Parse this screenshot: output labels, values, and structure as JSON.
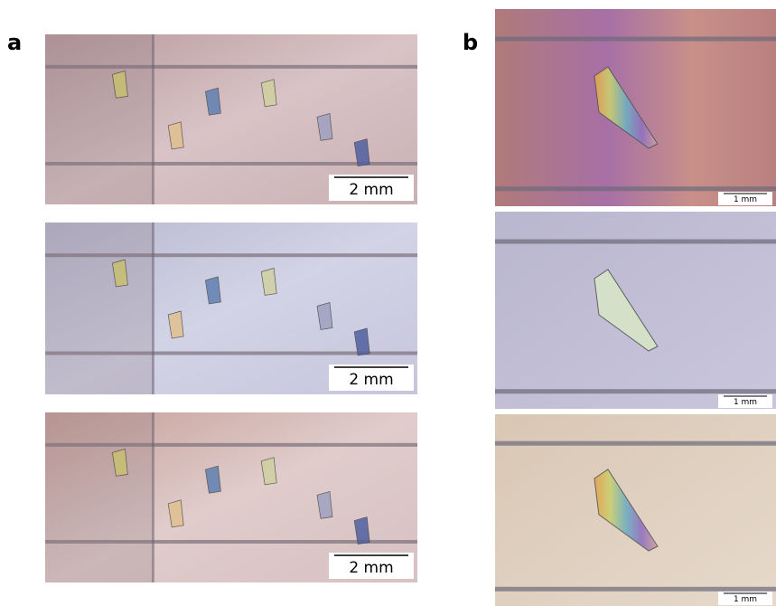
{
  "panels": [
    {
      "label": "a",
      "images": [
        {
          "scale_bar": "2 mm"
        },
        {
          "scale_bar": "2 mm"
        },
        {
          "scale_bar": "2 mm"
        }
      ]
    },
    {
      "label": "b",
      "images": [
        {
          "scale_bar": "1 mm"
        },
        {
          "scale_bar": "1 mm"
        },
        {
          "scale_bar": "1 mm"
        }
      ]
    }
  ]
}
